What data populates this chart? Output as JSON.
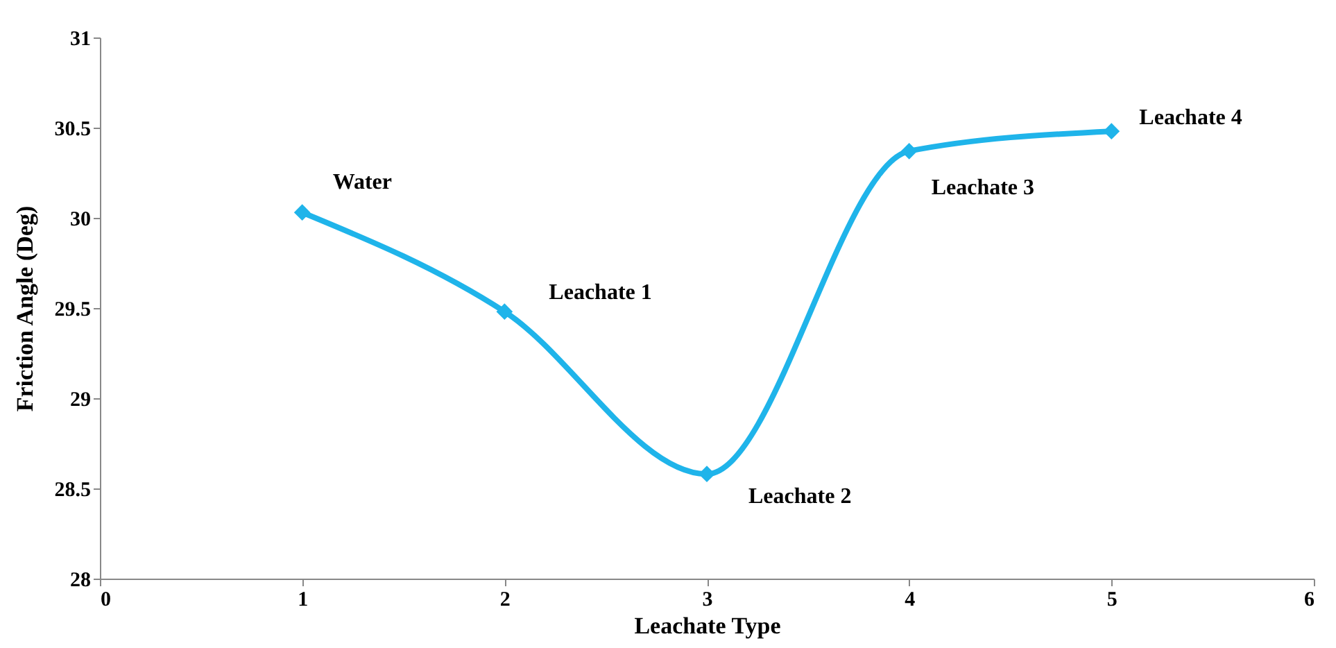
{
  "chart_data": {
    "type": "line",
    "xlabel": "Leachate Type",
    "ylabel": "Friction  Angle (Deg)",
    "x": [
      1,
      2,
      3,
      4,
      5
    ],
    "series": [
      {
        "color": "#1fb4ea",
        "values": [
          30.03,
          29.48,
          28.58,
          30.37,
          30.48
        ]
      }
    ],
    "xlim": [
      0,
      6
    ],
    "xticks": [
      0,
      1,
      2,
      3,
      4,
      5,
      6
    ],
    "ylim": [
      28,
      31
    ],
    "yticks": [
      28,
      28.5,
      29,
      29.5,
      30,
      30.5,
      31
    ],
    "grid": false,
    "marker": "diamond",
    "line_style": "solid",
    "annotations": [
      {
        "text": "Water",
        "x": 1,
        "y": 30.03
      },
      {
        "text": "Leachate 1",
        "x": 2,
        "y": 29.48
      },
      {
        "text": "Leachate 2",
        "x": 3,
        "y": 28.58
      },
      {
        "text": "Leachate 3",
        "x": 4,
        "y": 30.37
      },
      {
        "text": "Leachate 4",
        "x": 5,
        "y": 30.48
      }
    ]
  }
}
